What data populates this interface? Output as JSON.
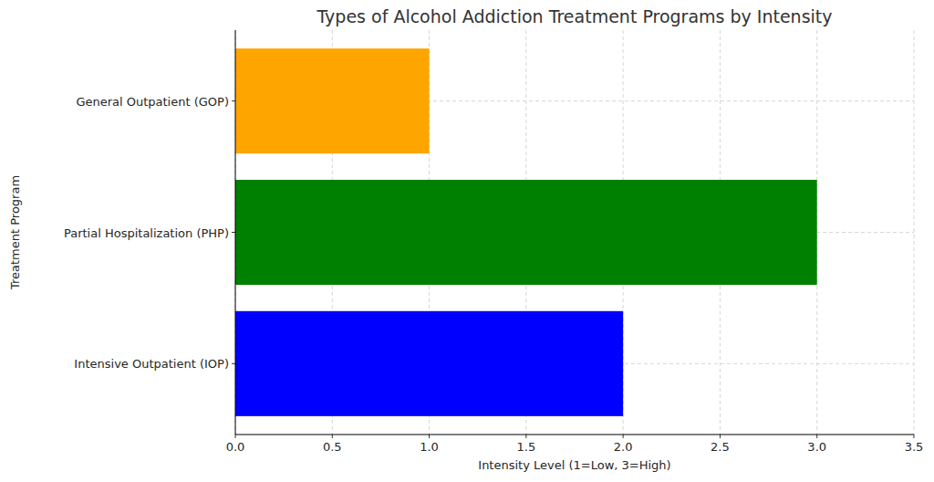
{
  "chart_data": {
    "type": "bar",
    "orientation": "horizontal",
    "title": "Types of Alcohol Addiction Treatment Programs by Intensity",
    "x_label": "Intensity Level (1=Low, 3=High)",
    "y_label": "Treatment Program",
    "categories": [
      "Intensive Outpatient (IOP)",
      "Partial Hospitalization (PHP)",
      "General Outpatient (GOP)"
    ],
    "values": [
      2,
      3,
      1
    ],
    "colors": [
      "#0000ff",
      "#008000",
      "#ffa500"
    ],
    "xlim": [
      0,
      3.5
    ],
    "xticks": [
      {
        "value": 0,
        "label": "0.0"
      },
      0.5,
      {
        "value": 1,
        "label": "1.0"
      },
      1.5,
      {
        "value": 2,
        "label": "2.0"
      },
      2.5,
      {
        "value": 3,
        "label": "3.0"
      },
      3.5
    ],
    "grid": true
  }
}
